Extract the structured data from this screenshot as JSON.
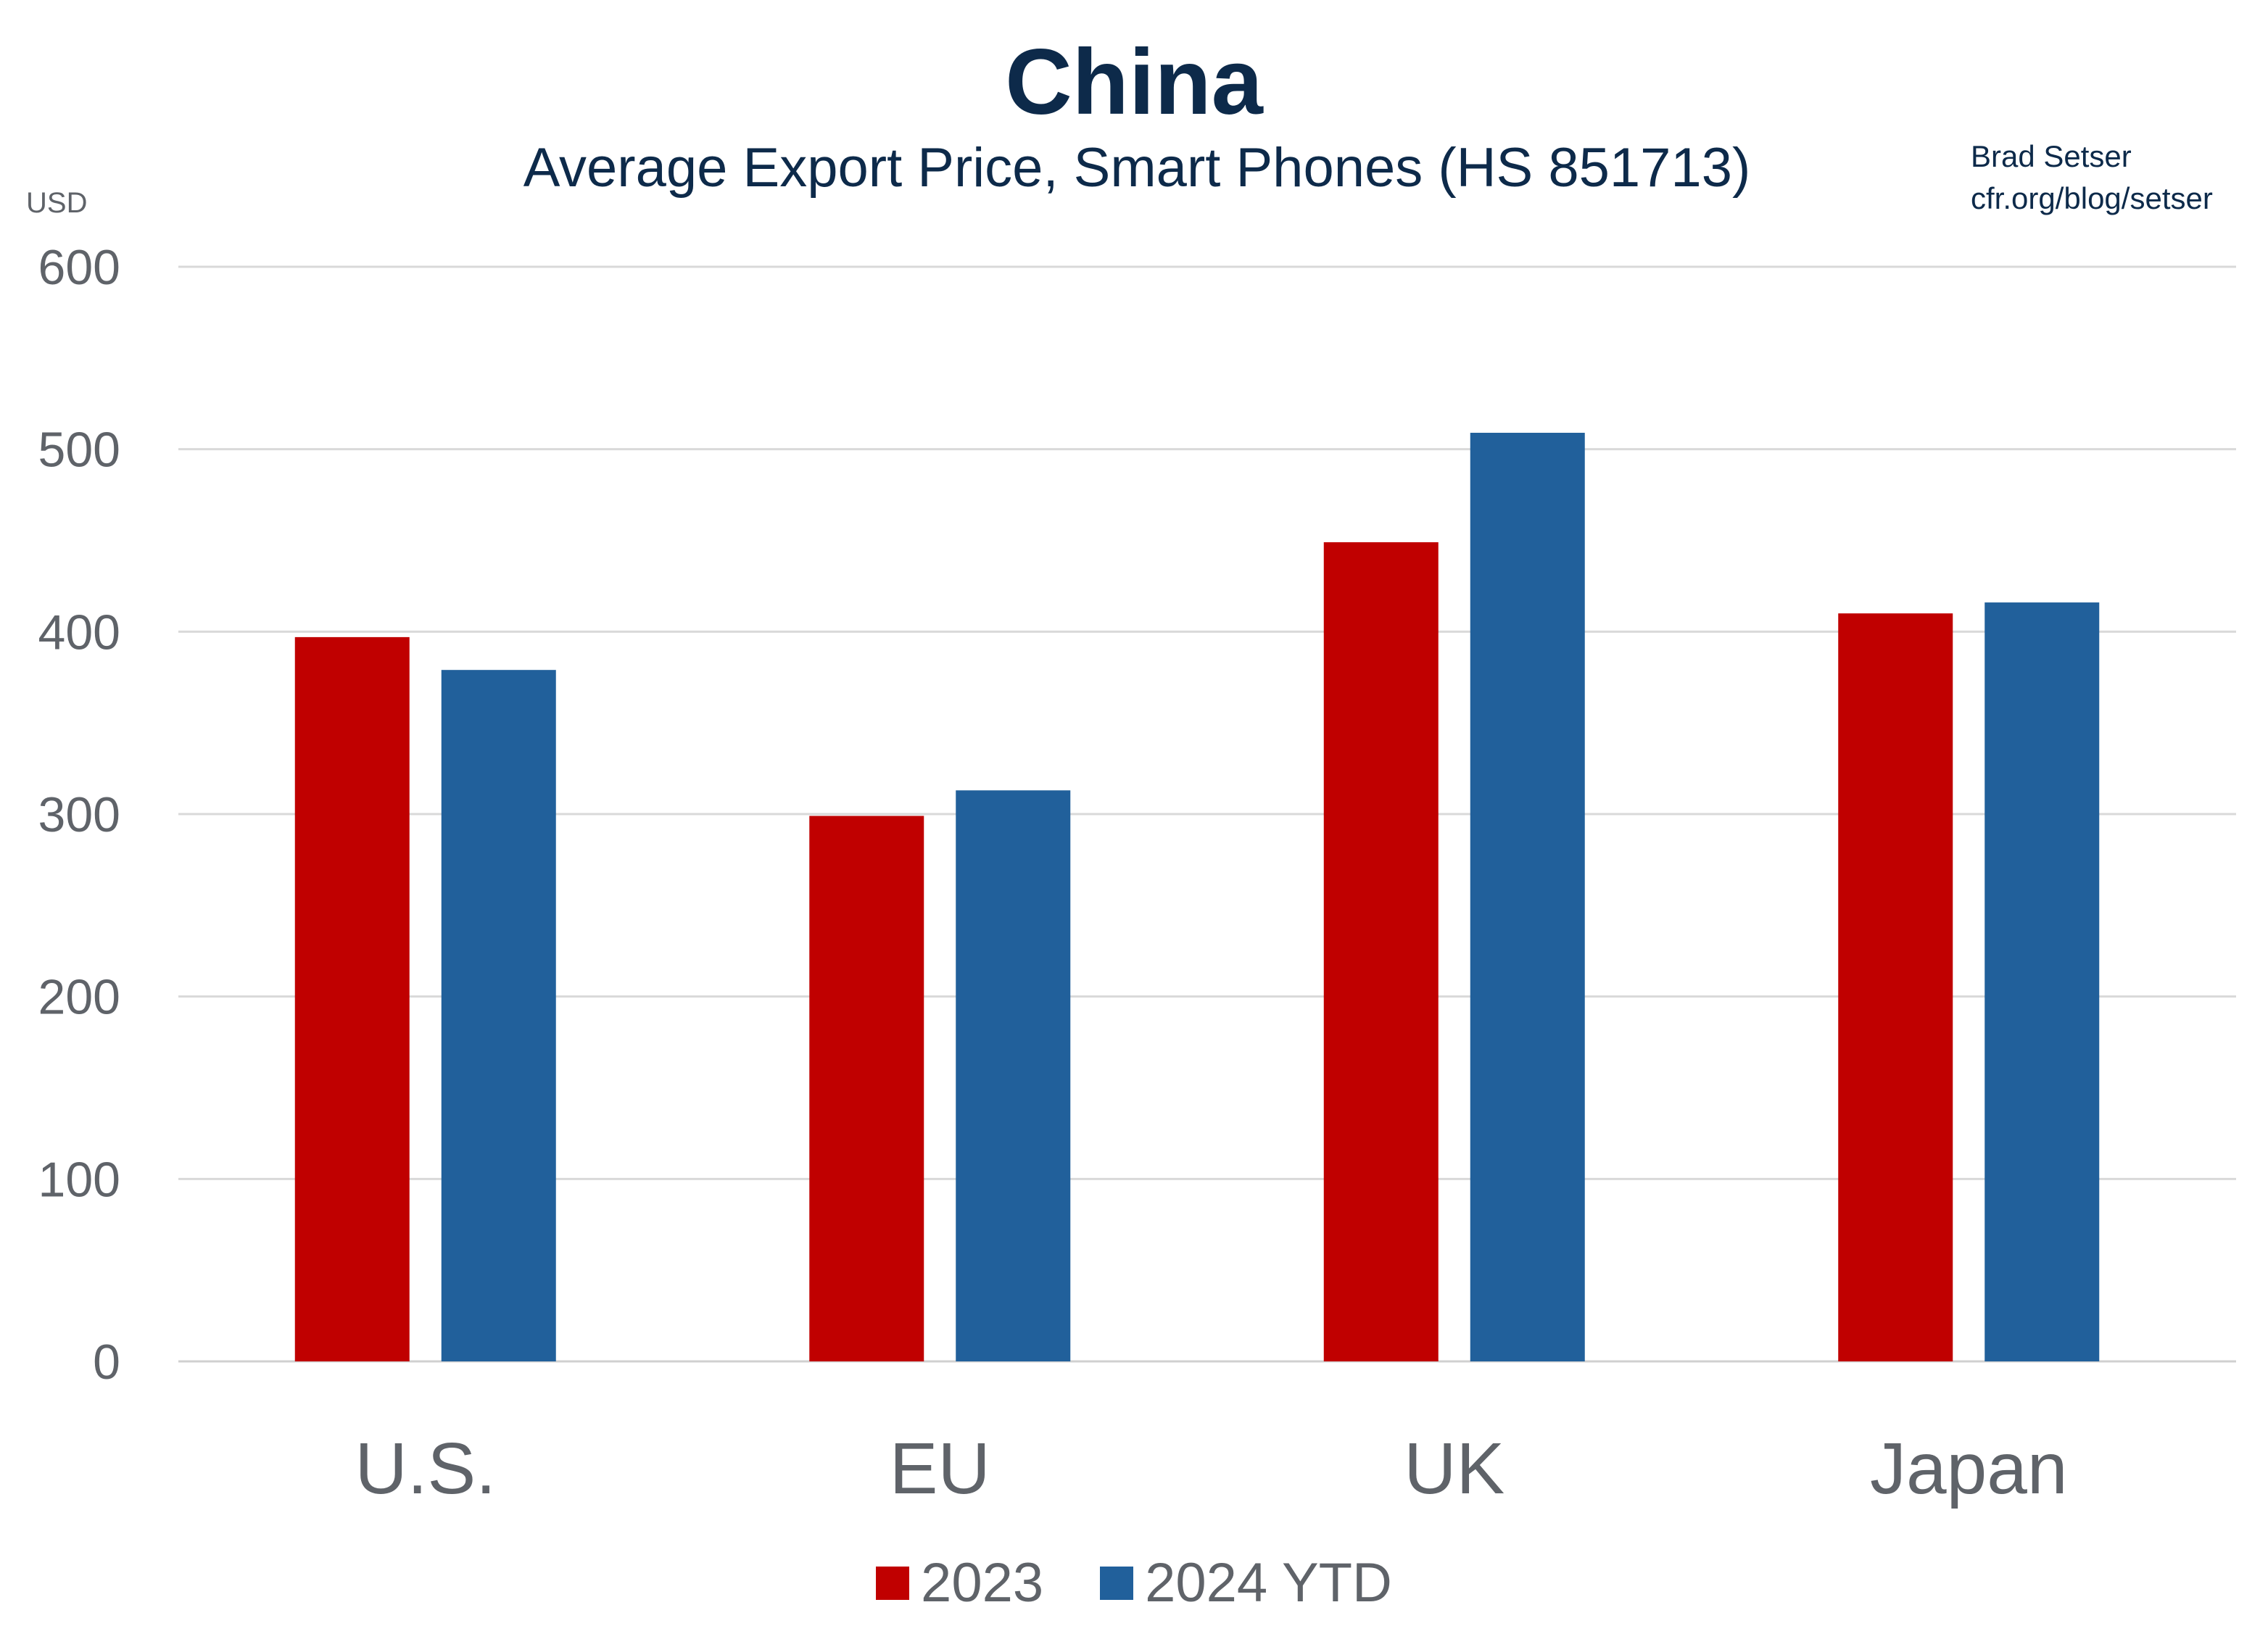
{
  "chart_data": {
    "type": "bar",
    "title": "China",
    "subtitle": "Average Export Price, Smart Phones (HS 851713)",
    "ylabel": "USD",
    "credit": [
      "Brad Setser",
      "cfr.org/blog/setser"
    ],
    "categories": [
      "U.S.",
      "EU",
      "UK",
      "Japan"
    ],
    "series": [
      {
        "name": "2023",
        "color": "#c00000",
        "values": [
          397,
          299,
          449,
          410
        ]
      },
      {
        "name": "2024 YTD",
        "color": "#21609b",
        "values": [
          379,
          313,
          509,
          416
        ]
      }
    ],
    "ylim": [
      0,
      600
    ],
    "yticks": [
      0,
      100,
      200,
      300,
      400,
      500,
      600
    ],
    "grid": true,
    "legend": "bottom"
  }
}
